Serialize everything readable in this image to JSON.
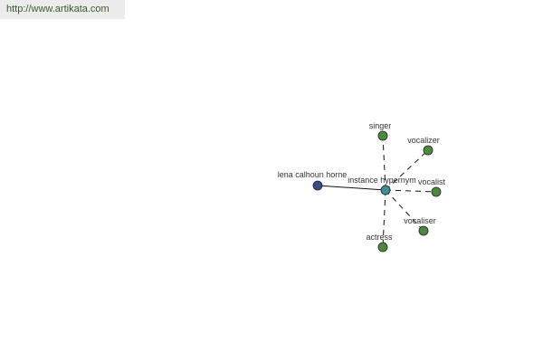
{
  "watermark": "http://www.artikata.com",
  "graph": {
    "center": {
      "label": "instance hypernym",
      "color": "#3f8f94"
    },
    "source": {
      "label": "lena calhoun horne",
      "color": "#3a4a8a"
    },
    "targets": [
      {
        "label": "singer",
        "color": "#4a8a3a"
      },
      {
        "label": "vocalizer",
        "color": "#4a8a3a"
      },
      {
        "label": "vocalist",
        "color": "#4a8a3a"
      },
      {
        "label": "vocaliser",
        "color": "#4a8a3a"
      },
      {
        "label": "actress",
        "color": "#4a8a3a"
      }
    ]
  }
}
